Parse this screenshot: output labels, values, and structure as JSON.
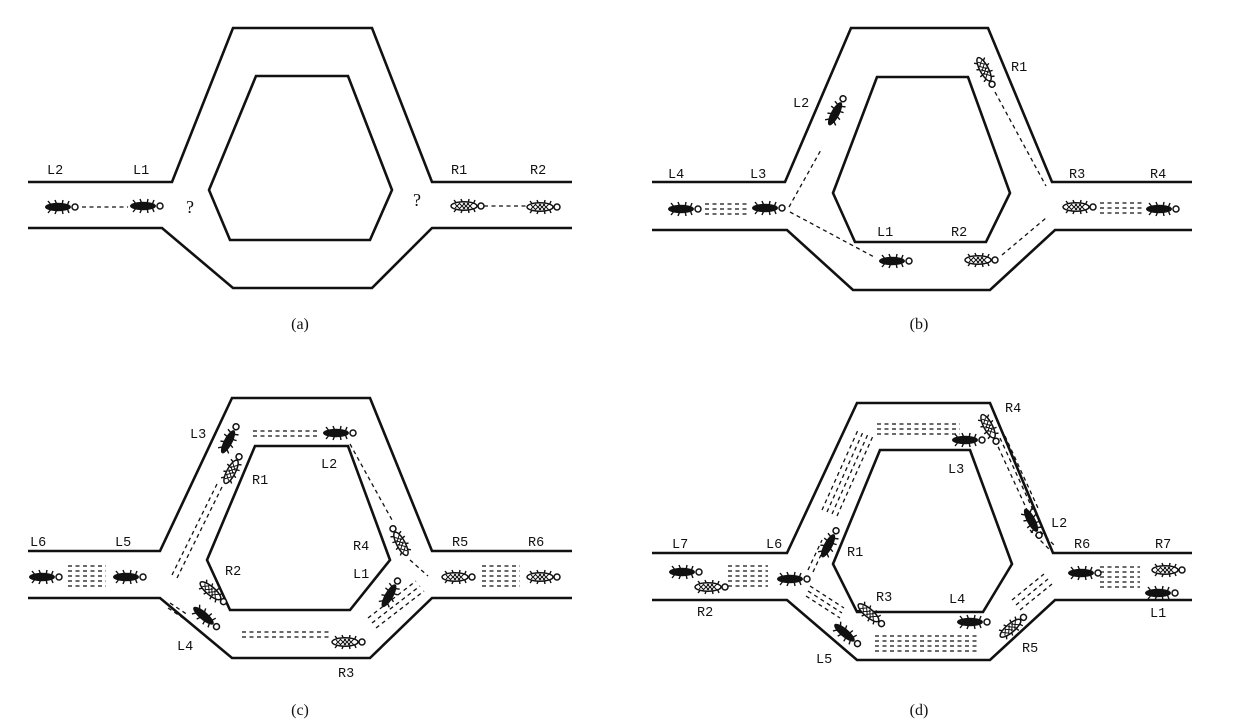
{
  "panels": [
    {
      "caption": "(a)",
      "labels": [
        "L2",
        "L1",
        "R1",
        "R2"
      ],
      "marks": [
        "?",
        "?"
      ]
    },
    {
      "caption": "(b)",
      "labels": [
        "L4",
        "L3",
        "L2",
        "R1",
        "R3",
        "R4",
        "L1",
        "R2"
      ]
    },
    {
      "caption": "(c)",
      "labels": [
        "L6",
        "L5",
        "L3",
        "R1",
        "L2",
        "R4",
        "R5",
        "R6",
        "L1",
        "R2",
        "L4",
        "R3"
      ]
    },
    {
      "caption": "(d)",
      "labels": [
        "L7",
        "L6",
        "R1",
        "R4",
        "L3",
        "L2",
        "R6",
        "R7",
        "R2",
        "R3",
        "L4",
        "L5",
        "R5",
        "L1"
      ]
    }
  ],
  "legend": {
    "solid_ant": "ant type L",
    "hatched_ant": "ant type R"
  }
}
